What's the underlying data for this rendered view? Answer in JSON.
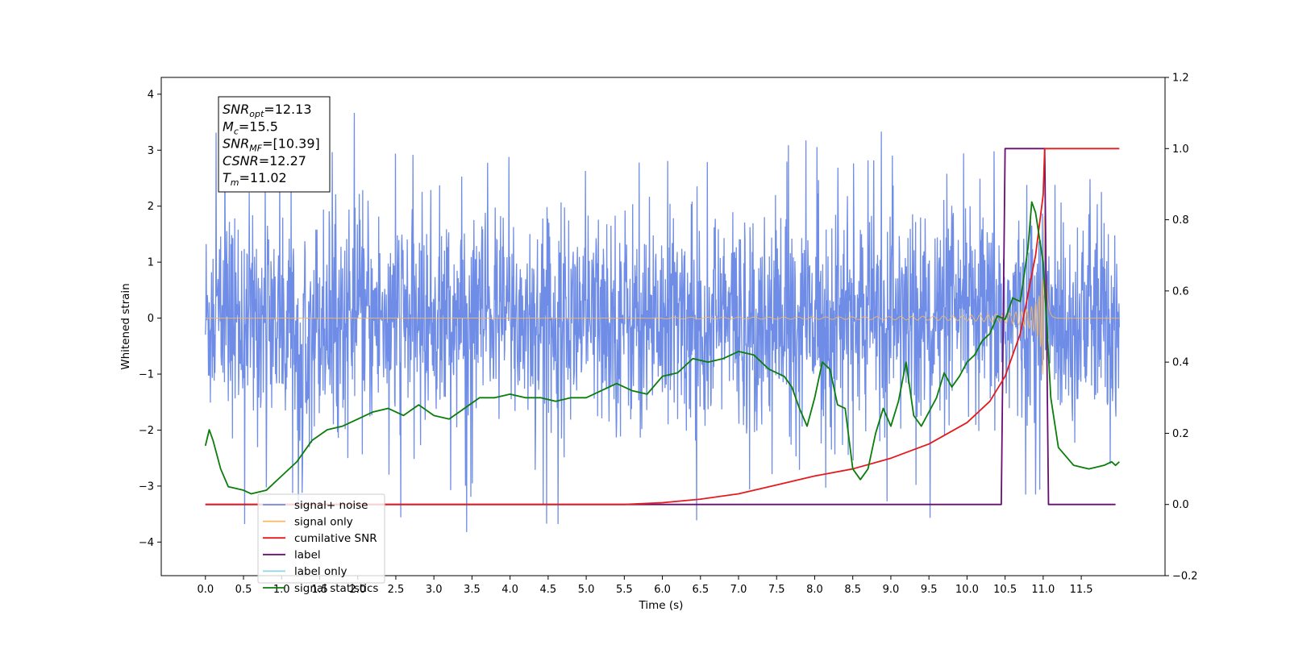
{
  "chart_data": {
    "type": "line",
    "xlabel": "Time (s)",
    "ylabel": "Whitened strain",
    "xlim": [
      -0.58,
      12.6
    ],
    "ylim": [
      -4.6,
      4.3
    ],
    "y2lim": [
      -0.2,
      1.2
    ],
    "xticks": [
      "0.0",
      "0.5",
      "1.0",
      "1.5",
      "2.0",
      "2.5",
      "3.0",
      "3.5",
      "4.0",
      "4.5",
      "5.0",
      "5.5",
      "6.0",
      "6.5",
      "7.0",
      "7.5",
      "8.0",
      "8.5",
      "9.0",
      "9.5",
      "10.0",
      "10.5",
      "11.0",
      "11.5"
    ],
    "yticks": [
      "4",
      "3",
      "2",
      "1",
      "0",
      "−1",
      "−2",
      "−3",
      "−4"
    ],
    "y2ticks": [
      "1.2",
      "1.0",
      "0.8",
      "0.6",
      "0.4",
      "0.2",
      "0.0",
      "−0.2"
    ],
    "grid": false,
    "legend_position": "lower-left",
    "info_box": [
      {
        "sym": "SNR",
        "sub": "opt",
        "val": "=12.13"
      },
      {
        "sym": "M",
        "sub": "c",
        "val": "=15.5"
      },
      {
        "sym": "SNR",
        "sub": "MF",
        "val": "=[10.39]"
      },
      {
        "sym": "CSNR",
        "sub": "",
        "val": "=12.27"
      },
      {
        "sym": "T",
        "sub": "m",
        "val": "=11.02"
      }
    ],
    "series": [
      {
        "name": "signal+ noise",
        "color": "#6f8de6",
        "axis": "left",
        "style": "noise",
        "x_range": [
          0.0,
          12.0
        ],
        "spread": 2.6,
        "peaks_max": 3.9,
        "peaks_min": -3.95
      },
      {
        "name": "signal only",
        "color": "#f5b860",
        "axis": "left",
        "style": "chirp",
        "x_range": [
          0.0,
          12.0
        ],
        "merger_time": 11.02,
        "max_amplitude": 2.2
      },
      {
        "name": "cumilative SNR",
        "color": "#e41a1c",
        "axis": "right",
        "x": [
          0.0,
          5.5,
          6.0,
          6.5,
          7.0,
          7.5,
          8.0,
          8.5,
          9.0,
          9.5,
          10.0,
          10.3,
          10.5,
          10.7,
          10.9,
          11.0,
          11.02,
          12.0
        ],
        "y": [
          0.0,
          0.0,
          0.005,
          0.015,
          0.03,
          0.055,
          0.08,
          0.1,
          0.13,
          0.17,
          0.23,
          0.29,
          0.36,
          0.48,
          0.7,
          0.87,
          1.0,
          1.0
        ]
      },
      {
        "name": "label",
        "color": "#6a0d73",
        "axis": "right",
        "x": [
          0.0,
          10.45,
          10.5,
          11.02,
          11.07,
          11.95
        ],
        "y": [
          0.0,
          0.0,
          1.0,
          1.0,
          0.0,
          0.0
        ]
      },
      {
        "name": "label only",
        "color": "#8fd3e8",
        "axis": "right",
        "x": [],
        "y": []
      },
      {
        "name": "signal statistics",
        "color": "#0a7d0a",
        "axis": "right",
        "x": [
          0.0,
          0.05,
          0.1,
          0.2,
          0.3,
          0.5,
          0.6,
          0.8,
          1.0,
          1.2,
          1.4,
          1.6,
          1.8,
          2.0,
          2.2,
          2.4,
          2.6,
          2.8,
          3.0,
          3.2,
          3.4,
          3.6,
          3.8,
          4.0,
          4.2,
          4.4,
          4.6,
          4.8,
          5.0,
          5.2,
          5.4,
          5.6,
          5.8,
          6.0,
          6.2,
          6.4,
          6.6,
          6.8,
          7.0,
          7.2,
          7.4,
          7.6,
          7.7,
          7.8,
          7.9,
          8.0,
          8.1,
          8.2,
          8.3,
          8.4,
          8.5,
          8.6,
          8.7,
          8.8,
          8.9,
          9.0,
          9.1,
          9.2,
          9.3,
          9.4,
          9.5,
          9.6,
          9.7,
          9.8,
          9.9,
          10.0,
          10.1,
          10.2,
          10.3,
          10.4,
          10.5,
          10.6,
          10.7,
          10.8,
          10.85,
          10.9,
          10.95,
          11.0,
          11.05,
          11.1,
          11.2,
          11.4,
          11.6,
          11.8,
          11.9,
          11.95,
          12.0
        ],
        "y": [
          0.165,
          0.21,
          0.18,
          0.1,
          0.05,
          0.04,
          0.03,
          0.04,
          0.08,
          0.12,
          0.18,
          0.21,
          0.22,
          0.24,
          0.26,
          0.27,
          0.25,
          0.28,
          0.25,
          0.24,
          0.27,
          0.3,
          0.3,
          0.31,
          0.3,
          0.3,
          0.29,
          0.3,
          0.3,
          0.32,
          0.34,
          0.32,
          0.31,
          0.36,
          0.37,
          0.41,
          0.4,
          0.41,
          0.43,
          0.42,
          0.38,
          0.36,
          0.33,
          0.27,
          0.22,
          0.3,
          0.4,
          0.38,
          0.28,
          0.27,
          0.1,
          0.07,
          0.1,
          0.2,
          0.27,
          0.22,
          0.29,
          0.4,
          0.25,
          0.22,
          0.26,
          0.3,
          0.37,
          0.33,
          0.36,
          0.4,
          0.42,
          0.46,
          0.48,
          0.53,
          0.52,
          0.58,
          0.57,
          0.72,
          0.85,
          0.82,
          0.75,
          0.68,
          0.5,
          0.3,
          0.16,
          0.11,
          0.1,
          0.11,
          0.12,
          0.11,
          0.12
        ]
      }
    ]
  }
}
